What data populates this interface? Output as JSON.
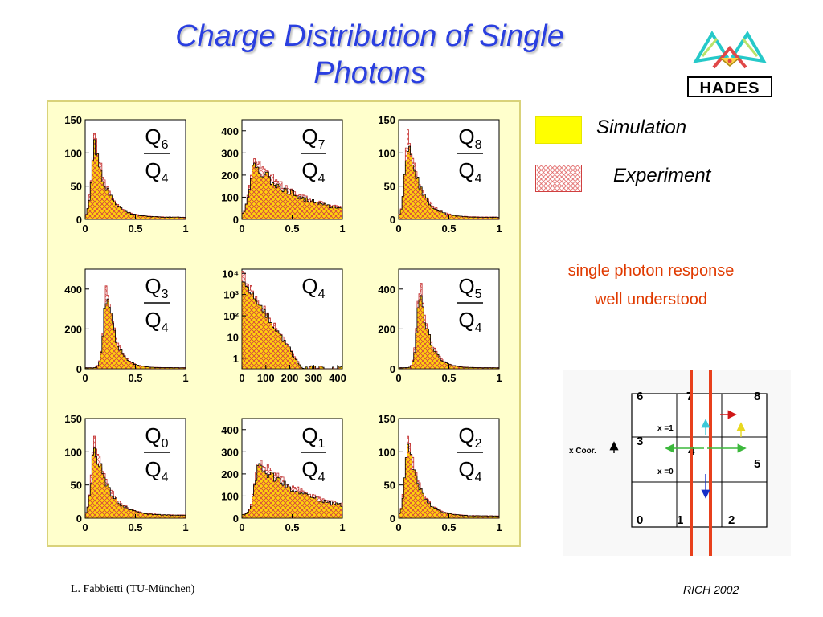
{
  "slide": {
    "title_line1": "Charge Distribution of Single",
    "title_line2": "Photons",
    "logo_text": "HADES",
    "legend": {
      "simulation": "Simulation",
      "experiment": "Experiment"
    },
    "note_line1": "single photon response",
    "note_line2": "well understood",
    "footer_left": "L. Fabbietti  (TU-München)",
    "footer_right": "RICH 2002"
  },
  "colors": {
    "title": "#2a3fe0",
    "simulation_fill": "#ffff00",
    "experiment_hatch": "#d04040",
    "note": "#e03a00",
    "panel_bg": "#ffffcc",
    "beam_line": "#e8401c"
  },
  "diagram": {
    "cells": [
      "6",
      "7",
      "8",
      "3",
      "4",
      "5",
      "0",
      "1",
      "2"
    ],
    "labels": {
      "x1": "x =1",
      "x0": "x =0",
      "coord": "x Coor."
    }
  },
  "chart_data": [
    {
      "type": "histogram",
      "numerator": "Q",
      "numerator_index": "6",
      "denominator": "Q",
      "denominator_index": "4",
      "x_ticks": [
        "0",
        "0.5",
        "1"
      ],
      "y_ticks": [
        "0",
        "50",
        "100",
        "150"
      ],
      "xlim": [
        0,
        1
      ],
      "ylim": [
        0,
        150
      ],
      "log_y": false,
      "shape": {
        "peak_x": 0.1,
        "peak_y": 115,
        "rise": 0.05,
        "decay": 0.12,
        "tail": 3
      }
    },
    {
      "type": "histogram",
      "numerator": "Q",
      "numerator_index": "7",
      "denominator": "Q",
      "denominator_index": "4",
      "x_ticks": [
        "0",
        "0.5",
        "1"
      ],
      "y_ticks": [
        "0",
        "100",
        "200",
        "300",
        "400"
      ],
      "xlim": [
        0,
        1
      ],
      "ylim": [
        0,
        450
      ],
      "log_y": false,
      "shape": {
        "peak_x": 0.13,
        "peak_y": 250,
        "rise": 0.07,
        "decay": 0.45,
        "tail": 15
      }
    },
    {
      "type": "histogram",
      "numerator": "Q",
      "numerator_index": "8",
      "denominator": "Q",
      "denominator_index": "4",
      "x_ticks": [
        "0",
        "0.5",
        "1"
      ],
      "y_ticks": [
        "0",
        "50",
        "100",
        "150"
      ],
      "xlim": [
        0,
        1
      ],
      "ylim": [
        0,
        150
      ],
      "log_y": false,
      "shape": {
        "peak_x": 0.1,
        "peak_y": 120,
        "rise": 0.05,
        "decay": 0.12,
        "tail": 3
      }
    },
    {
      "type": "histogram",
      "numerator": "Q",
      "numerator_index": "3",
      "denominator": "Q",
      "denominator_index": "4",
      "x_ticks": [
        "0",
        "0.5",
        "1"
      ],
      "y_ticks": [
        "0",
        "200",
        "400"
      ],
      "xlim": [
        0,
        1
      ],
      "ylim": [
        0,
        500
      ],
      "log_y": false,
      "shape": {
        "peak_x": 0.22,
        "peak_y": 380,
        "rise": 0.05,
        "decay": 0.09,
        "tail": 5
      }
    },
    {
      "type": "histogram",
      "numerator": "Q",
      "numerator_index": "4",
      "denominator": "",
      "denominator_index": "",
      "x_ticks": [
        "0",
        "100",
        "200",
        "300",
        "400"
      ],
      "y_ticks": [
        "1",
        "10",
        "10²",
        "10³",
        "10⁴"
      ],
      "xlim": [
        0,
        420
      ],
      "ylim": [
        -0.5,
        4.2
      ],
      "log_y": true,
      "shape": {
        "peak_x": 3,
        "peak_y": 3.7,
        "rise": 2,
        "decay": 60,
        "tail": 0
      }
    },
    {
      "type": "histogram",
      "numerator": "Q",
      "numerator_index": "5",
      "denominator": "Q",
      "denominator_index": "4",
      "x_ticks": [
        "0",
        "0.5",
        "1"
      ],
      "y_ticks": [
        "0",
        "200",
        "400"
      ],
      "xlim": [
        0,
        1
      ],
      "ylim": [
        0,
        500
      ],
      "log_y": false,
      "shape": {
        "peak_x": 0.22,
        "peak_y": 400,
        "rise": 0.05,
        "decay": 0.09,
        "tail": 5
      }
    },
    {
      "type": "histogram",
      "numerator": "Q",
      "numerator_index": "0",
      "denominator": "Q",
      "denominator_index": "4",
      "x_ticks": [
        "0",
        "0.5",
        "1"
      ],
      "y_ticks": [
        "0",
        "50",
        "100",
        "150"
      ],
      "xlim": [
        0,
        1
      ],
      "ylim": [
        0,
        150
      ],
      "log_y": false,
      "shape": {
        "peak_x": 0.1,
        "peak_y": 110,
        "rise": 0.05,
        "decay": 0.14,
        "tail": 4
      }
    },
    {
      "type": "histogram",
      "numerator": "Q",
      "numerator_index": "1",
      "denominator": "Q",
      "denominator_index": "4",
      "x_ticks": [
        "0",
        "0.5",
        "1"
      ],
      "y_ticks": [
        "0",
        "100",
        "200",
        "300",
        "400"
      ],
      "xlim": [
        0,
        1
      ],
      "ylim": [
        0,
        450
      ],
      "log_y": false,
      "shape": {
        "peak_x": 0.18,
        "peak_y": 240,
        "rise": 0.07,
        "decay": 0.5,
        "tail": 15
      }
    },
    {
      "type": "histogram",
      "numerator": "Q",
      "numerator_index": "2",
      "denominator": "Q",
      "denominator_index": "4",
      "x_ticks": [
        "0",
        "0.5",
        "1"
      ],
      "y_ticks": [
        "0",
        "50",
        "100",
        "150"
      ],
      "xlim": [
        0,
        1
      ],
      "ylim": [
        0,
        150
      ],
      "log_y": false,
      "shape": {
        "peak_x": 0.1,
        "peak_y": 110,
        "rise": 0.05,
        "decay": 0.12,
        "tail": 3
      }
    }
  ]
}
